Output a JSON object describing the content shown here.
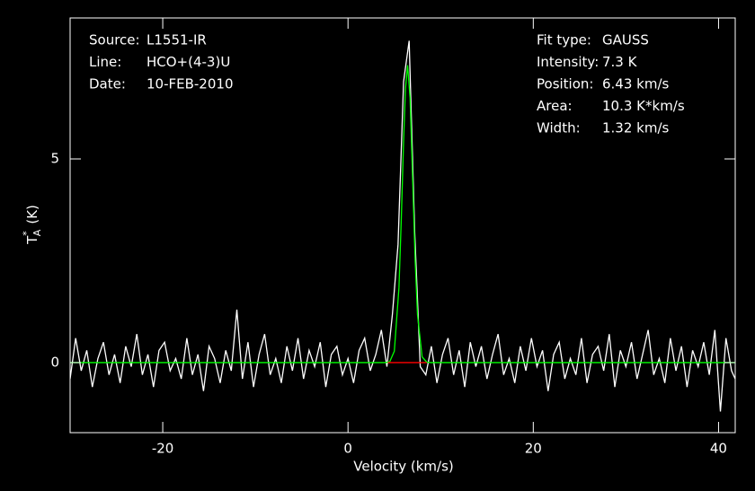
{
  "chart_data": {
    "type": "line",
    "xlabel": "Velocity (km/s)",
    "ylabel": {
      "main": "T",
      "sup": "*",
      "sub": "A",
      "unit": "(K)"
    },
    "xlim": [
      -30,
      41.8
    ],
    "ylim": [
      -1.72,
      8.46
    ],
    "xticks": [
      -20,
      0,
      20,
      40
    ],
    "yticks": [
      0,
      5
    ],
    "info_left": [
      {
        "label": "Source:",
        "value": "L1551-IR"
      },
      {
        "label": "Line:",
        "value": "HCO+(4-3)U"
      },
      {
        "label": "Date:",
        "value": "10-FEB-2010"
      }
    ],
    "info_right": [
      {
        "label": "Fit type:",
        "value": "GAUSS"
      },
      {
        "label": "Intensity:",
        "value": "7.3 K"
      },
      {
        "label": "Position:",
        "value": "6.43 km/s"
      },
      {
        "label": "Area:",
        "value": "10.3 K*km/s"
      },
      {
        "label": "Width:",
        "value": "1.32 km/s"
      }
    ],
    "x": [
      -30,
      -29.4,
      -28.8,
      -28.2,
      -27.6,
      -27,
      -26.4,
      -25.8,
      -25.2,
      -24.6,
      -24,
      -23.4,
      -22.8,
      -22.2,
      -21.6,
      -21,
      -20.4,
      -19.8,
      -19.2,
      -18.6,
      -18,
      -17.4,
      -16.8,
      -16.2,
      -15.6,
      -15,
      -14.4,
      -13.8,
      -13.2,
      -12.6,
      -12,
      -11.4,
      -10.8,
      -10.2,
      -9.6,
      -9,
      -8.4,
      -7.8,
      -7.2,
      -6.6,
      -6,
      -5.4,
      -4.8,
      -4.2,
      -3.6,
      -3,
      -2.4,
      -1.8,
      -1.2,
      -0.6,
      0,
      0.6,
      1.2,
      1.8,
      2.4,
      3,
      3.6,
      4.2,
      4.8,
      5.4,
      6,
      6.6,
      7.2,
      7.8,
      8.4,
      9,
      9.6,
      10.2,
      10.8,
      11.4,
      12,
      12.6,
      13.2,
      13.8,
      14.4,
      15,
      15.6,
      16.2,
      16.8,
      17.4,
      18,
      18.6,
      19.2,
      19.8,
      20.4,
      21,
      21.6,
      22.2,
      22.8,
      23.4,
      24,
      24.6,
      25.2,
      25.8,
      26.4,
      27,
      27.6,
      28.2,
      28.8,
      29.4,
      30,
      30.6,
      31.2,
      31.8,
      32.4,
      33,
      33.6,
      34.2,
      34.8,
      35.4,
      36,
      36.6,
      37.2,
      37.8,
      38.4,
      39,
      39.6,
      40.2,
      40.8,
      41.4,
      42
    ],
    "series": [
      {
        "color": "#ffffff",
        "values": [
          -0.4,
          0.6,
          -0.2,
          0.3,
          -0.6,
          0.1,
          0.5,
          -0.3,
          0.2,
          -0.5,
          0.4,
          -0.1,
          0.7,
          -0.3,
          0.2,
          -0.6,
          0.3,
          0.5,
          -0.2,
          0.1,
          -0.4,
          0.6,
          -0.3,
          0.2,
          -0.7,
          0.4,
          0.1,
          -0.5,
          0.3,
          -0.2,
          1.3,
          -0.4,
          0.5,
          -0.6,
          0.2,
          0.7,
          -0.3,
          0.1,
          -0.5,
          0.4,
          -0.2,
          0.6,
          -0.4,
          0.3,
          -0.1,
          0.5,
          -0.6,
          0.2,
          0.4,
          -0.3,
          0.1,
          -0.5,
          0.3,
          0.6,
          -0.2,
          0.2,
          0.8,
          -0.1,
          1.2,
          2.9,
          6.9,
          7.9,
          3.2,
          -0.1,
          -0.3,
          0.4,
          -0.5,
          0.2,
          0.6,
          -0.3,
          0.3,
          -0.6,
          0.5,
          -0.1,
          0.4,
          -0.4,
          0.2,
          0.7,
          -0.3,
          0.1,
          -0.5,
          0.4,
          -0.2,
          0.6,
          -0.1,
          0.3,
          -0.7,
          0.2,
          0.5,
          -0.4,
          0.1,
          -0.3,
          0.6,
          -0.5,
          0.2,
          0.4,
          -0.2,
          0.7,
          -0.6,
          0.3,
          -0.1,
          0.5,
          -0.4,
          0.2,
          0.8,
          -0.3,
          0.1,
          -0.5,
          0.6,
          -0.2,
          0.4,
          -0.6,
          0.3,
          -0.1,
          0.5,
          -0.3,
          0.8,
          -1.2,
          0.6,
          -0.2,
          -0.5
        ]
      },
      {
        "color": "#00ff00",
        "x": [
          -30,
          4,
          4.5,
          5,
          5.5,
          5.75,
          6,
          6.2,
          6.43,
          6.7,
          7,
          7.25,
          7.5,
          8,
          8.5,
          9,
          42
        ],
        "values": [
          0,
          0,
          0.02,
          0.28,
          1.84,
          3.5,
          5.44,
          6.71,
          7.3,
          6.5,
          4.35,
          2.5,
          1.18,
          0.14,
          0.01,
          0,
          0
        ]
      },
      {
        "color": "#ff0000",
        "x": [
          4.3,
          8.5
        ],
        "values": [
          0,
          0
        ]
      }
    ]
  }
}
